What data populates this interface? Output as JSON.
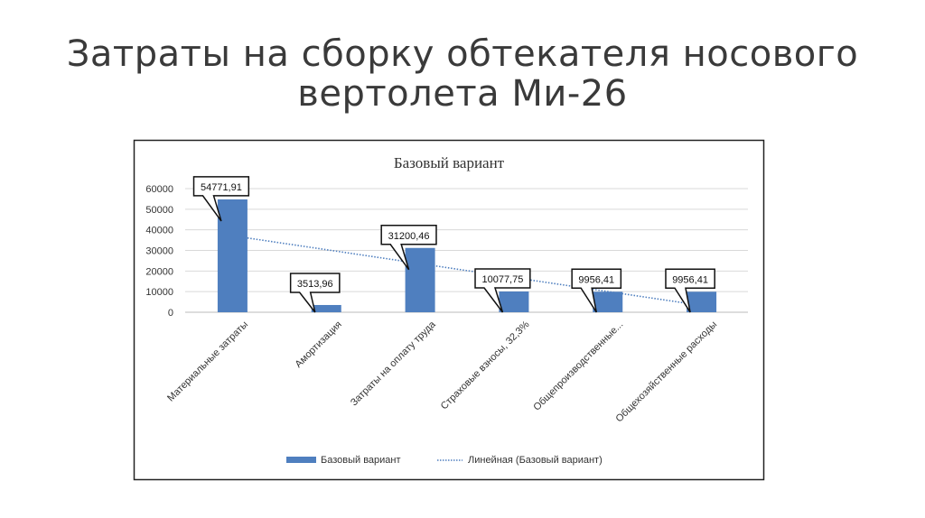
{
  "slide": {
    "title_line1": "Затраты на сборку обтекателя носового",
    "title_line2": "вертолета Ми-26"
  },
  "chart_data": {
    "type": "bar",
    "title": "Базовый вариант",
    "categories": [
      "Материальные затраты",
      "Амортизация",
      "Затраты на оплату труда",
      "Страховые взносы, 32,3%",
      "Общепроизводственные...",
      "Общехозяйственные расходы"
    ],
    "series": [
      {
        "name": "Базовый вариант",
        "values": [
          54771.91,
          3513.96,
          31200.46,
          10077.75,
          9956.41,
          9956.41
        ],
        "color": "#4f7fbf"
      }
    ],
    "data_labels": [
      "54771,91",
      "3513,96",
      "31200,46",
      "10077,75",
      "9956,41",
      "9956,41"
    ],
    "trendline": {
      "type": "linear",
      "name": "Линейная (Базовый вариант)",
      "color": "#4f7fbf",
      "style": "dotted"
    },
    "yticks": [
      "0",
      "10000",
      "20000",
      "30000",
      "40000",
      "50000",
      "60000"
    ],
    "ylim": [
      0,
      60000
    ],
    "grid": true,
    "legend": "bottom"
  }
}
